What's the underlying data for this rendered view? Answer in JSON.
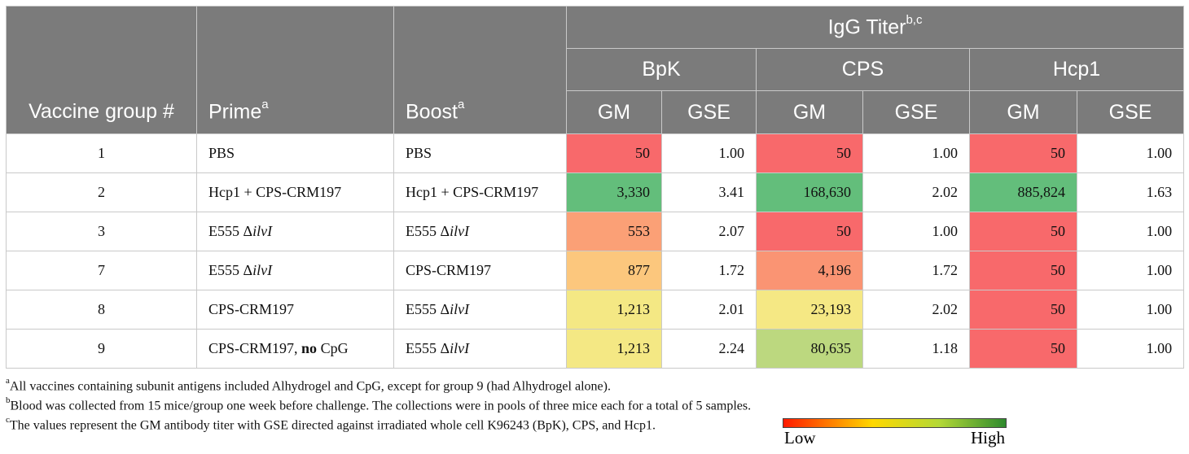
{
  "header": {
    "col_vaccine": "Vaccine group #",
    "col_prime": "Prime",
    "col_prime_sup": "a",
    "col_boost": "Boost",
    "col_boost_sup": "a",
    "igg_title": "IgG Titer",
    "igg_sup": "b,c",
    "antigens": [
      "BpK",
      "CPS",
      "Hcp1"
    ],
    "gm": "GM",
    "gse": "GSE"
  },
  "rows": [
    {
      "group": "1",
      "prime_pre": "PBS",
      "prime_em": "",
      "prime_post": "",
      "boost_pre": "PBS",
      "boost_em": "",
      "bpk_gm": "50",
      "bpk_gse": "1.00",
      "cps_gm": "50",
      "cps_gse": "1.00",
      "hcp1_gm": "50",
      "hcp1_gse": "1.00",
      "colors": {
        "bpk": "#f8696b",
        "cps": "#f8696b",
        "hcp1": "#f8696b"
      }
    },
    {
      "group": "2",
      "prime_pre": "Hcp1 + CPS-CRM197",
      "prime_em": "",
      "prime_post": "",
      "boost_pre": "Hcp1 + CPS-CRM197",
      "boost_em": "",
      "bpk_gm": "3,330",
      "bpk_gse": "3.41",
      "cps_gm": "168,630",
      "cps_gse": "2.02",
      "hcp1_gm": "885,824",
      "hcp1_gse": "1.63",
      "colors": {
        "bpk": "#63be7b",
        "cps": "#63be7b",
        "hcp1": "#63be7b"
      }
    },
    {
      "group": "3",
      "prime_pre": "E555 Δ",
      "prime_em": "ilvI",
      "prime_post": "",
      "boost_pre": "E555 Δ",
      "boost_em": "ilvI",
      "bpk_gm": "553",
      "bpk_gse": "2.07",
      "cps_gm": "50",
      "cps_gse": "1.00",
      "hcp1_gm": "50",
      "hcp1_gse": "1.00",
      "colors": {
        "bpk": "#fba076",
        "cps": "#f8696b",
        "hcp1": "#f8696b"
      }
    },
    {
      "group": "7",
      "prime_pre": "E555 Δ",
      "prime_em": "ilvI",
      "prime_post": "",
      "boost_pre": "CPS-CRM197",
      "boost_em": "",
      "bpk_gm": "877",
      "bpk_gse": "1.72",
      "cps_gm": "4,196",
      "cps_gse": "1.72",
      "hcp1_gm": "50",
      "hcp1_gse": "1.00",
      "colors": {
        "bpk": "#fcc77d",
        "cps": "#fa9473",
        "hcp1": "#f8696b"
      }
    },
    {
      "group": "8",
      "prime_pre": "CPS-CRM197",
      "prime_em": "",
      "prime_post": "",
      "boost_pre": "E555 Δ",
      "boost_em": "ilvI",
      "bpk_gm": "1,213",
      "bpk_gse": "2.01",
      "cps_gm": "23,193",
      "cps_gse": "2.02",
      "hcp1_gm": "50",
      "hcp1_gse": "1.00",
      "colors": {
        "bpk": "#f4e884",
        "cps": "#f5e884",
        "hcp1": "#f8696b"
      }
    },
    {
      "group": "9",
      "prime_pre": "CPS-CRM197, ",
      "prime_em": "",
      "prime_bold": "no",
      "prime_post": " CpG",
      "boost_pre": "E555 Δ",
      "boost_em": "ilvI",
      "bpk_gm": "1,213",
      "bpk_gse": "2.24",
      "cps_gm": "80,635",
      "cps_gse": "1.18",
      "hcp1_gm": "50",
      "hcp1_gse": "1.00",
      "colors": {
        "bpk": "#f4e884",
        "cps": "#bcd87f",
        "hcp1": "#f8696b"
      }
    }
  ],
  "footnotes": [
    {
      "sup": "a",
      "text": "All vaccines containing subunit antigens included Alhydrogel and CpG, except for group 9 (had Alhydrogel alone)."
    },
    {
      "sup": "b",
      "text": "Blood was collected from 15 mice/group one week before challenge. The collections were in pools of three mice each for a total of 5 samples."
    },
    {
      "sup": "c",
      "text": "The values represent the GM antibody titer with GSE directed against irradiated whole cell K96243 (BpK), CPS, and Hcp1."
    }
  ],
  "legend": {
    "low": "Low",
    "high": "High"
  }
}
